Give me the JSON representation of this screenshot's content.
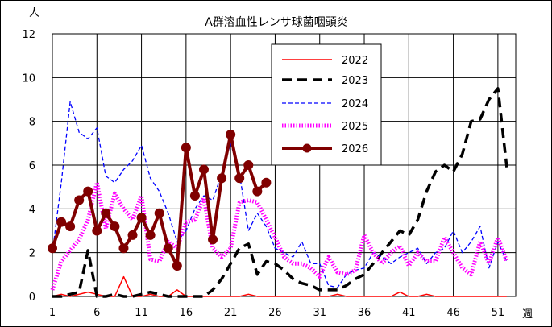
{
  "chart_data": {
    "type": "line",
    "title": "A群溶血性レンサ球菌咽頭炎",
    "ylabel": "人",
    "xlabel": "週",
    "xlim": [
      1,
      53
    ],
    "ylim": [
      0,
      12
    ],
    "x_ticks": [
      1,
      6,
      11,
      16,
      21,
      26,
      31,
      36,
      41,
      46,
      51
    ],
    "y_ticks": [
      0,
      2,
      4,
      6,
      8,
      10,
      12
    ],
    "grid": true,
    "legend_position": "top-center",
    "series": [
      {
        "name": "2022",
        "color": "#ff0000",
        "style": "solid-thin",
        "x": [
          1,
          2,
          3,
          4,
          5,
          6,
          7,
          8,
          9,
          10,
          11,
          12,
          13,
          14,
          15,
          16,
          17,
          18,
          19,
          20,
          21,
          22,
          23,
          24,
          25,
          26,
          27,
          28,
          29,
          30,
          31,
          32,
          33,
          34,
          35,
          36,
          37,
          38,
          39,
          40,
          41,
          42,
          43,
          44,
          45,
          46,
          47,
          48,
          49,
          50,
          51,
          52
        ],
        "values": [
          0,
          0.1,
          0,
          0.1,
          0.2,
          0.1,
          0,
          0,
          0.9,
          0,
          0,
          0.1,
          0,
          0,
          0.3,
          0,
          0,
          0,
          0,
          0,
          0,
          0,
          0.1,
          0,
          0,
          0,
          0,
          0,
          0,
          0,
          0,
          0,
          0.1,
          0,
          0,
          0,
          0,
          0,
          0,
          0.2,
          0,
          0,
          0.1,
          0,
          0,
          0,
          0,
          0,
          0,
          0,
          0,
          0
        ]
      },
      {
        "name": "2023",
        "color": "#000000",
        "style": "dashed-thick",
        "x": [
          1,
          2,
          3,
          4,
          5,
          6,
          7,
          8,
          9,
          10,
          11,
          12,
          13,
          14,
          15,
          16,
          17,
          18,
          19,
          20,
          21,
          22,
          23,
          24,
          25,
          26,
          27,
          28,
          29,
          30,
          31,
          32,
          33,
          34,
          35,
          36,
          37,
          38,
          39,
          40,
          41,
          42,
          43,
          44,
          45,
          46,
          47,
          48,
          49,
          50,
          51,
          52
        ],
        "values": [
          0,
          0,
          0.1,
          0.2,
          2.1,
          0,
          0,
          0.1,
          0,
          0,
          0.1,
          0.2,
          0.1,
          0,
          0,
          0,
          0,
          0,
          0.3,
          0.8,
          1.5,
          2.2,
          2.4,
          1.0,
          1.6,
          1.5,
          1.2,
          0.8,
          0.6,
          0.5,
          0.3,
          0.3,
          0.3,
          0.5,
          0.8,
          1.0,
          1.5,
          2.0,
          2.5,
          3.0,
          2.8,
          3.5,
          4.8,
          5.7,
          6.0,
          5.7,
          6.5,
          8.0,
          8.1,
          9.0,
          9.5,
          5.9
        ]
      },
      {
        "name": "2024",
        "color": "#0000ff",
        "style": "dashed-thin",
        "x": [
          1,
          2,
          3,
          4,
          5,
          6,
          7,
          8,
          9,
          10,
          11,
          12,
          13,
          14,
          15,
          16,
          17,
          18,
          19,
          20,
          21,
          22,
          23,
          24,
          25,
          26,
          27,
          28,
          29,
          30,
          31,
          32,
          33,
          34,
          35,
          36,
          37,
          38,
          39,
          40,
          41,
          42,
          43,
          44,
          45,
          46,
          47,
          48,
          49,
          50,
          51,
          52
        ],
        "values": [
          2.0,
          5.2,
          8.9,
          7.5,
          7.2,
          7.7,
          5.5,
          5.2,
          5.8,
          6.2,
          6.9,
          5.4,
          4.8,
          3.8,
          2.5,
          3.0,
          4.0,
          4.6,
          4.4,
          5.6,
          7.0,
          5.6,
          3.0,
          3.8,
          3.2,
          2.2,
          2.0,
          1.8,
          2.5,
          1.5,
          1.5,
          0.5,
          0.4,
          1.0,
          1.2,
          1.3,
          2.0,
          1.8,
          1.5,
          1.8,
          2.0,
          2.2,
          1.5,
          2.0,
          2.2,
          3.0,
          2.0,
          2.5,
          3.2,
          1.3,
          2.5,
          1.6
        ]
      },
      {
        "name": "2025",
        "color": "#ff00ff",
        "style": "dotted-thick",
        "x": [
          1,
          2,
          3,
          4,
          5,
          6,
          7,
          8,
          9,
          10,
          11,
          12,
          13,
          14,
          15,
          16,
          17,
          18,
          19,
          20,
          21,
          22,
          23,
          24,
          25,
          26,
          27,
          28,
          29,
          30,
          31,
          32,
          33,
          34,
          35,
          36,
          37,
          38,
          39,
          40,
          41,
          42,
          43,
          44,
          45,
          46,
          47,
          48,
          49,
          50,
          51,
          52
        ],
        "values": [
          0.3,
          1.6,
          2.1,
          2.6,
          3.5,
          5.2,
          3.1,
          4.7,
          4.0,
          3.5,
          4.6,
          1.7,
          1.6,
          2.5,
          2.2,
          3.4,
          3.5,
          4.5,
          2.2,
          1.8,
          2.2,
          4.3,
          4.4,
          4.3,
          3.5,
          2.7,
          1.8,
          1.5,
          1.5,
          1.3,
          0.9,
          1.8,
          1.1,
          1.0,
          1.2,
          2.8,
          2.0,
          1.5,
          2.0,
          2.3,
          1.4,
          2.0,
          1.6,
          1.6,
          2.7,
          2.0,
          1.3,
          1.0,
          2.5,
          1.5,
          2.7,
          1.6
        ]
      },
      {
        "name": "2026",
        "color": "#800000",
        "style": "solid-thick-markers",
        "x": [
          1,
          2,
          3,
          4,
          5,
          6,
          7,
          8,
          9,
          10,
          11,
          12,
          13,
          14,
          15,
          16,
          17,
          18,
          19,
          20,
          21,
          22,
          23,
          24,
          25
        ],
        "values": [
          2.2,
          3.4,
          3.2,
          4.4,
          4.8,
          3.0,
          3.8,
          3.2,
          2.2,
          2.8,
          3.6,
          2.8,
          3.8,
          2.2,
          1.4,
          6.8,
          4.6,
          5.8,
          2.6,
          5.4,
          7.4,
          5.4,
          6.0,
          4.8,
          5.2
        ]
      }
    ]
  }
}
